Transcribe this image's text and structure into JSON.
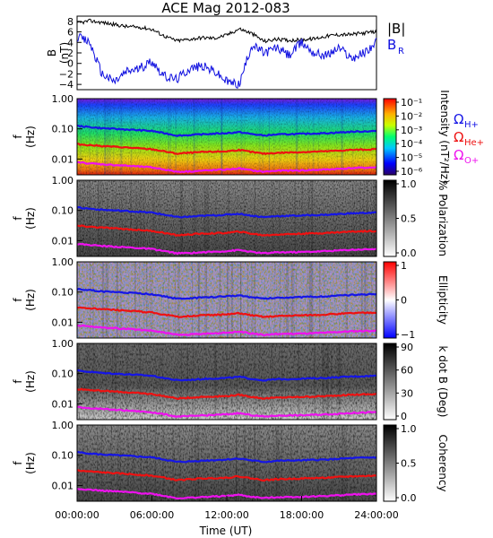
{
  "title": "ACE Mag 2012-083",
  "xlabel": "Time (UT)",
  "x_ticks": [
    "00:00:00",
    "06:00:00",
    "12:00:00",
    "18:00:00",
    "24:00:00"
  ],
  "colors": {
    "magnitude": "#000000",
    "radial": "#1010e0",
    "h_plus": "#1515e6",
    "he_plus": "#ee1111",
    "o_plus": "#ee11ee"
  },
  "legend": {
    "magnitude": "|B|",
    "radial": "B",
    "radial_sub": "R",
    "omega": "Ω",
    "h_plus": "H+",
    "he_plus": "He+",
    "o_plus": "O+"
  },
  "chart_data": [
    {
      "type": "line",
      "ylabel_main": "B",
      "ylabel_unit": "(nT)",
      "ylim": [
        -5,
        9
      ],
      "y_ticks": [
        "8",
        "6",
        "4",
        "2",
        "0",
        "−2",
        "−4"
      ],
      "x_hours": [
        0,
        1,
        2,
        3,
        4,
        5,
        6,
        7,
        8,
        9,
        10,
        11,
        12,
        13,
        14,
        15,
        16,
        17,
        18,
        19,
        20,
        21,
        22,
        23,
        24
      ],
      "series": [
        {
          "name": "|B|",
          "values": [
            7.6,
            8.1,
            7.8,
            7.4,
            7.0,
            6.9,
            6.5,
            5.2,
            4.3,
            4.6,
            4.9,
            4.8,
            5.4,
            6.6,
            5.7,
            4.2,
            4.6,
            4.4,
            4.5,
            4.7,
            5.2,
            5.5,
            5.5,
            5.8,
            6.0
          ]
        },
        {
          "name": "B",
          "values": [
            5.0,
            4.0,
            -2.0,
            -3.5,
            -1.5,
            -1.0,
            0.5,
            -2.5,
            -3.0,
            -1.0,
            -0.5,
            -1.5,
            -3.5,
            -4.0,
            3.5,
            2.0,
            3.0,
            1.5,
            4.0,
            2.0,
            1.5,
            3.0,
            1.0,
            2.0,
            4.0
          ]
        }
      ]
    },
    {
      "type": "heatmap",
      "ylabel_main": "f",
      "ylabel_unit": "(Hz)",
      "y_ticks": [
        "1.00",
        "0.10",
        "0.01"
      ],
      "colorbar_label": "Intensity (nT²/Hz)",
      "colorbar_ticks": [
        "10⁻¹",
        "10⁻²",
        "10⁻³",
        "10⁻⁴",
        "10⁻⁵",
        "10⁻⁶"
      ]
    },
    {
      "type": "heatmap",
      "ylabel_main": "f",
      "ylabel_unit": "(Hz)",
      "y_ticks": [
        "1.00",
        "0.10",
        "0.01"
      ],
      "colorbar_label": "% Polarization",
      "colorbar_ticks": [
        "1.0",
        "0.5",
        "0.0"
      ]
    },
    {
      "type": "heatmap",
      "ylabel_main": "f",
      "ylabel_unit": "(Hz)",
      "y_ticks": [
        "1.00",
        "0.10",
        "0.01"
      ],
      "colorbar_label": "Ellipticity",
      "colorbar_ticks": [
        "1",
        "0",
        "−1"
      ]
    },
    {
      "type": "heatmap",
      "ylabel_main": "f",
      "ylabel_unit": "(Hz)",
      "y_ticks": [
        "1.00",
        "0.10",
        "0.01"
      ],
      "colorbar_label": "k dot B (Deg)",
      "colorbar_ticks": [
        "90",
        "60",
        "30",
        "0"
      ]
    },
    {
      "type": "heatmap",
      "ylabel_main": "f",
      "ylabel_unit": "(Hz)",
      "y_ticks": [
        "1.00",
        "0.10",
        "0.01"
      ],
      "colorbar_label": "Coherency",
      "colorbar_ticks": [
        "1.0",
        "0.5",
        "0.0"
      ]
    }
  ],
  "cyclotron_lines": {
    "x_hours": [
      0,
      2,
      4,
      6,
      7,
      8,
      9,
      10,
      12,
      13,
      14,
      15,
      16,
      18,
      20,
      22,
      24
    ],
    "h_plus_hz": [
      0.125,
      0.105,
      0.095,
      0.085,
      0.072,
      0.06,
      0.062,
      0.066,
      0.072,
      0.078,
      0.067,
      0.06,
      0.065,
      0.068,
      0.072,
      0.08,
      0.085
    ],
    "he_plus_hz": [
      0.031,
      0.027,
      0.024,
      0.021,
      0.018,
      0.015,
      0.016,
      0.017,
      0.018,
      0.02,
      0.017,
      0.015,
      0.016,
      0.017,
      0.018,
      0.02,
      0.021
    ],
    "o_plus_hz": [
      0.0078,
      0.0067,
      0.006,
      0.0053,
      0.0045,
      0.0038,
      0.0039,
      0.0041,
      0.0045,
      0.0049,
      0.0042,
      0.0038,
      0.0041,
      0.0042,
      0.0045,
      0.005,
      0.0053
    ]
  }
}
